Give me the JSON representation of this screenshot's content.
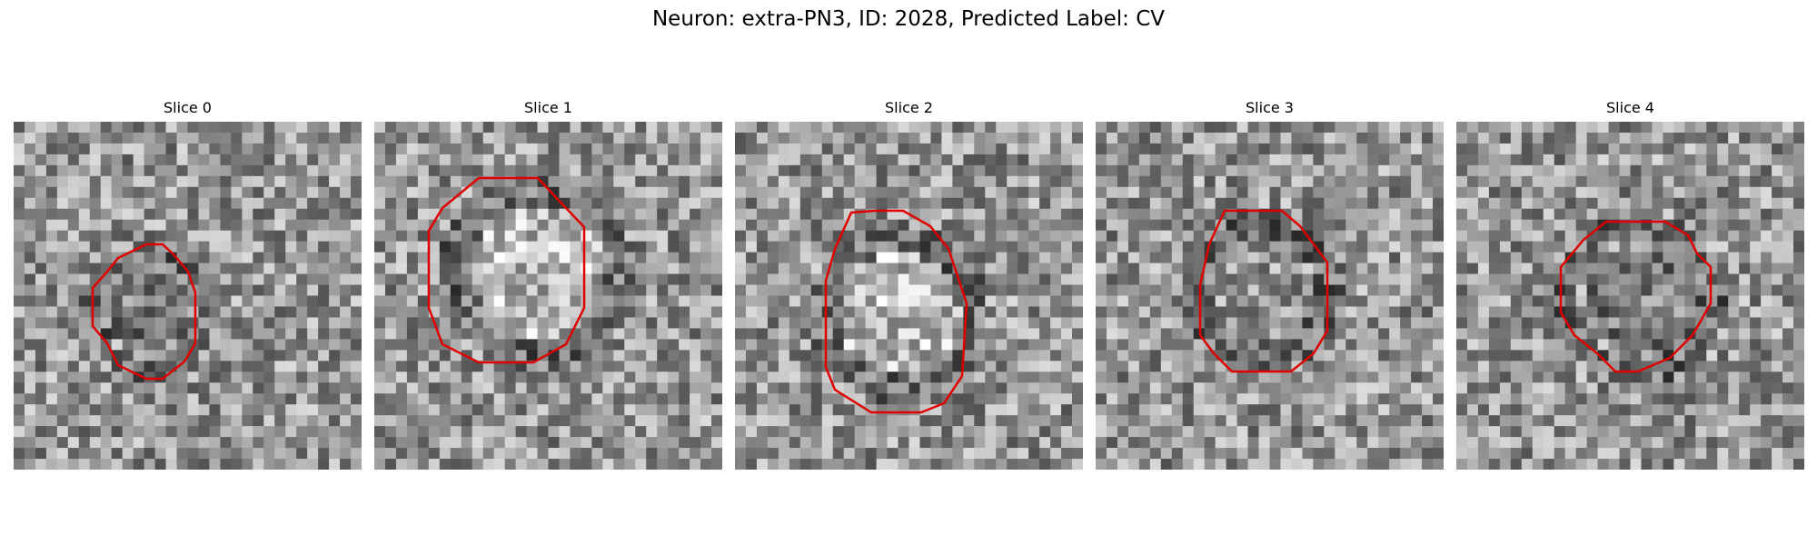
{
  "figure": {
    "title": "Neuron: extra-PN3, ID: 2028, Predicted Label: CV"
  },
  "panels": [
    {
      "label": "Slice 0"
    },
    {
      "label": "Slice 1"
    },
    {
      "label": "Slice 2"
    },
    {
      "label": "Slice 3"
    },
    {
      "label": "Slice 4"
    }
  ],
  "colors": {
    "contour": "#e00000",
    "background": "#ffffff"
  }
}
